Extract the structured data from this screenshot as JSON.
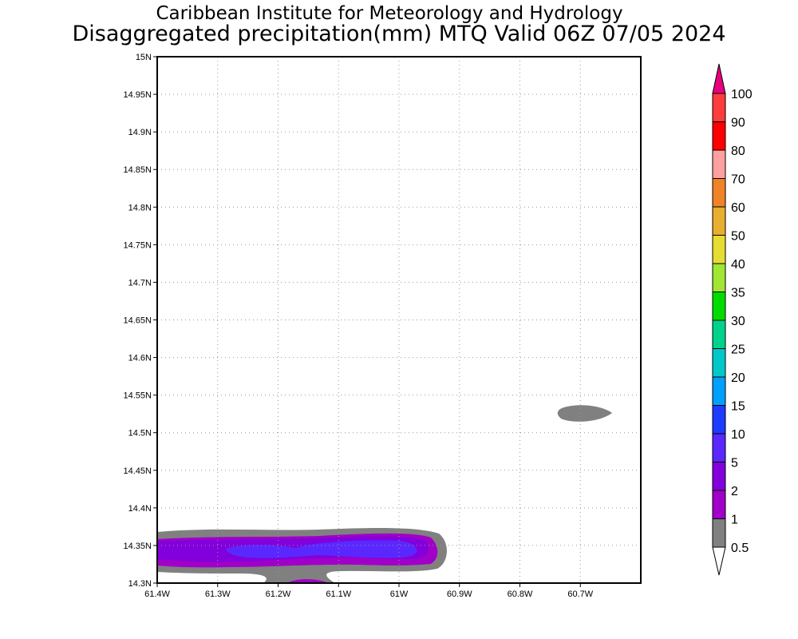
{
  "chart_data": {
    "type": "heatmap",
    "title": "Caribbean Institute for Meteorology and Hydrology",
    "subtitle": "Disaggregated precipitation(mm) MTQ Valid 06Z 07/05 2024",
    "xlabel": "",
    "ylabel": "",
    "xlim": [
      -61.4,
      -60.6
    ],
    "ylim": [
      14.3,
      15.0
    ],
    "x_ticks": [
      {
        "value": -61.4,
        "label": "61.4W"
      },
      {
        "value": -61.3,
        "label": "61.3W"
      },
      {
        "value": -61.2,
        "label": "61.2W"
      },
      {
        "value": -61.1,
        "label": "61.1W"
      },
      {
        "value": -61.0,
        "label": "61W"
      },
      {
        "value": -60.9,
        "label": "60.9W"
      },
      {
        "value": -60.8,
        "label": "60.8W"
      },
      {
        "value": -60.7,
        "label": "60.7W"
      }
    ],
    "y_ticks": [
      {
        "value": 14.3,
        "label": "14.3N"
      },
      {
        "value": 14.35,
        "label": "14.35N"
      },
      {
        "value": 14.4,
        "label": "14.4N"
      },
      {
        "value": 14.45,
        "label": "14.45N"
      },
      {
        "value": 14.5,
        "label": "14.5N"
      },
      {
        "value": 14.55,
        "label": "14.55N"
      },
      {
        "value": 14.6,
        "label": "14.6N"
      },
      {
        "value": 14.65,
        "label": "14.65N"
      },
      {
        "value": 14.7,
        "label": "14.7N"
      },
      {
        "value": 14.75,
        "label": "14.75N"
      },
      {
        "value": 14.8,
        "label": "14.8N"
      },
      {
        "value": 14.85,
        "label": "14.85N"
      },
      {
        "value": 14.9,
        "label": "14.9N"
      },
      {
        "value": 14.95,
        "label": "14.95N"
      },
      {
        "value": 15.0,
        "label": "15N"
      }
    ],
    "grid": true,
    "colorbar": {
      "placement": "right",
      "levels": [
        "0.5",
        "1",
        "2",
        "5",
        "10",
        "15",
        "20",
        "25",
        "30",
        "35",
        "40",
        "50",
        "60",
        "70",
        "80",
        "90",
        "100"
      ],
      "colors": [
        "#808080",
        "#a000c8",
        "#8200dc",
        "#5a28ff",
        "#1e3cff",
        "#00a0ff",
        "#00c8c8",
        "#00d28c",
        "#00dc00",
        "#a0e632",
        "#e6dc32",
        "#e6af2d",
        "#f08228",
        "#ffa0a0",
        "#ff0000",
        "#ff3c3c"
      ],
      "over_color": "#e6007e",
      "under_color": "#ffffff"
    },
    "features": [
      {
        "name": "south-coast-band",
        "lon_range": [
          -61.4,
          -60.93
        ],
        "lat_range": [
          14.3,
          14.37
        ],
        "max_level": "5-10 mm"
      },
      {
        "name": "east-cell",
        "lon_range": [
          -60.73,
          -60.65
        ],
        "lat_range": [
          14.515,
          14.54
        ],
        "max_level": "0.5-1 mm"
      }
    ]
  }
}
